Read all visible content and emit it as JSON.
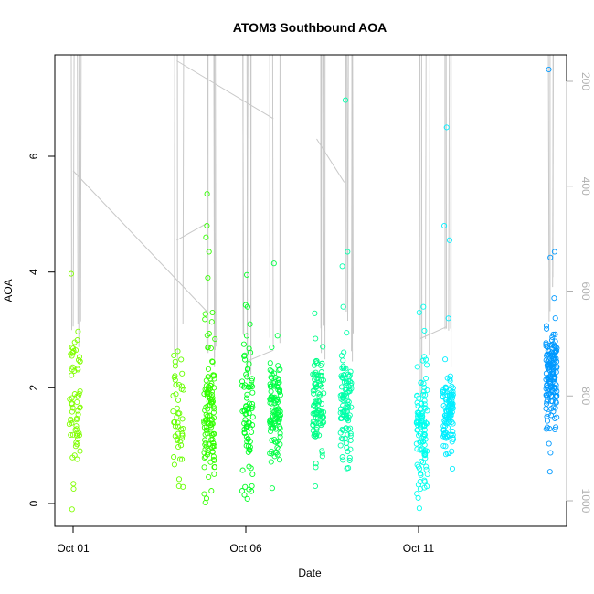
{
  "chart_data": {
    "type": "scatter",
    "title": "ATOM3 Southbound AOA",
    "xlabel": "Date",
    "ylabel": "AOA",
    "x_ticks": [
      "Oct 01",
      "Oct 06",
      "Oct 11"
    ],
    "y_ticks": [
      "0",
      "2",
      "4",
      "6"
    ],
    "ylim": [
      -0.3,
      7.7
    ],
    "right_axis": {
      "ticks": [
        "200",
        "400",
        "600",
        "800",
        "1000"
      ],
      "lim": [
        1050,
        120
      ],
      "inverted": true
    },
    "grid": false,
    "legend": "none",
    "colors": {
      "series_gradient": [
        "#80ff00",
        "#00ff40",
        "#00ffcc",
        "#00ccff",
        "#0080ff"
      ],
      "profile_line": "#c8c8c8"
    },
    "sessions": [
      {
        "day": 0.0,
        "mean": 1.7,
        "sd": 0.6,
        "count": 60,
        "outliers": [
          3.97,
          2.65,
          2.55,
          -0.1
        ],
        "color": "#80ff00"
      },
      {
        "day": 3.0,
        "mean": 1.45,
        "sd": 0.55,
        "count": 45,
        "outliers": [
          2.45,
          0.3
        ],
        "color": "#66ff00"
      },
      {
        "day": 3.9,
        "mean": 1.55,
        "sd": 0.6,
        "count": 120,
        "outliers": [
          5.35,
          4.8,
          4.6,
          4.35,
          3.9,
          3.3,
          0.22
        ],
        "color": "#33ff00"
      },
      {
        "day": 5.0,
        "mean": 1.5,
        "sd": 0.6,
        "count": 80,
        "outliers": [
          3.95,
          3.4,
          3.1,
          0.08
        ],
        "color": "#00ff22"
      },
      {
        "day": 5.8,
        "mean": 1.6,
        "sd": 0.4,
        "count": 110,
        "outliers": [
          4.15,
          2.9,
          2.7
        ],
        "color": "#00ff44"
      },
      {
        "day": 7.05,
        "mean": 1.65,
        "sd": 0.5,
        "count": 100,
        "outliers": [
          2.85,
          0.3
        ],
        "color": "#00ff88"
      },
      {
        "day": 7.85,
        "mean": 1.75,
        "sd": 0.45,
        "count": 100,
        "outliers": [
          6.97,
          4.35,
          4.1,
          3.4,
          2.95
        ],
        "color": "#00ffaa"
      },
      {
        "day": 10.05,
        "mean": 1.25,
        "sd": 0.55,
        "count": 110,
        "outliers": [
          3.4,
          3.3,
          0.4
        ],
        "color": "#00ffee"
      },
      {
        "day": 10.8,
        "mean": 1.6,
        "sd": 0.35,
        "count": 110,
        "outliers": [
          6.5,
          4.8,
          4.55,
          3.2,
          0.85
        ],
        "color": "#00eeff"
      },
      {
        "day": 13.8,
        "mean": 2.15,
        "sd": 0.45,
        "count": 150,
        "outliers": [
          7.5,
          4.35,
          4.25,
          3.55,
          0.55
        ],
        "color": "#0099ff"
      }
    ]
  }
}
